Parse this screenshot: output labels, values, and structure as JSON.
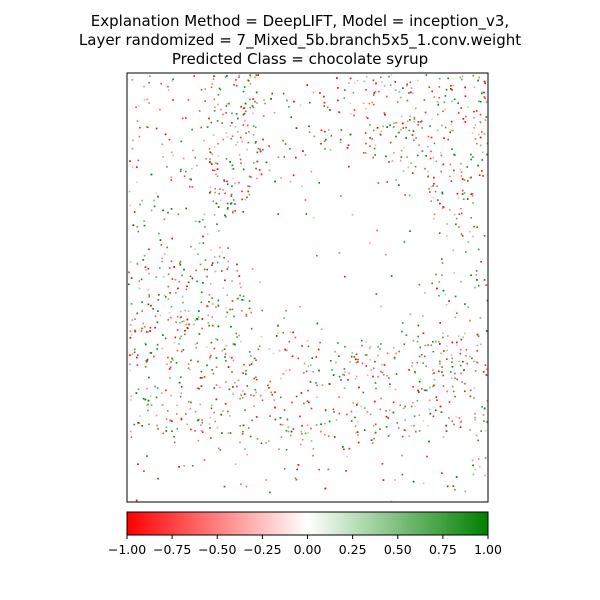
{
  "chart_data": {
    "type": "heatmap",
    "title_lines": [
      "Explanation Method = DeepLIFT, Model = inception_v3,",
      "Layer randomized = 7_Mixed_5b.branch5x5_1.conv.weight",
      "Predicted Class = chocolate syrup"
    ],
    "colorbar": {
      "vmin": -1.0,
      "vmax": 1.0,
      "colors": [
        "#ff0000",
        "#ffffff",
        "#008000"
      ],
      "ticks": [
        -1.0,
        -0.75,
        -0.5,
        -0.25,
        0.0,
        0.25,
        0.5,
        0.75,
        1.0
      ],
      "tick_labels": [
        "−1.00",
        "−0.75",
        "−0.50",
        "−0.25",
        "0.00",
        "0.25",
        "0.50",
        "0.75",
        "1.00"
      ],
      "orientation": "horizontal"
    },
    "image_axes": {
      "xticks": [],
      "yticks": []
    }
  }
}
